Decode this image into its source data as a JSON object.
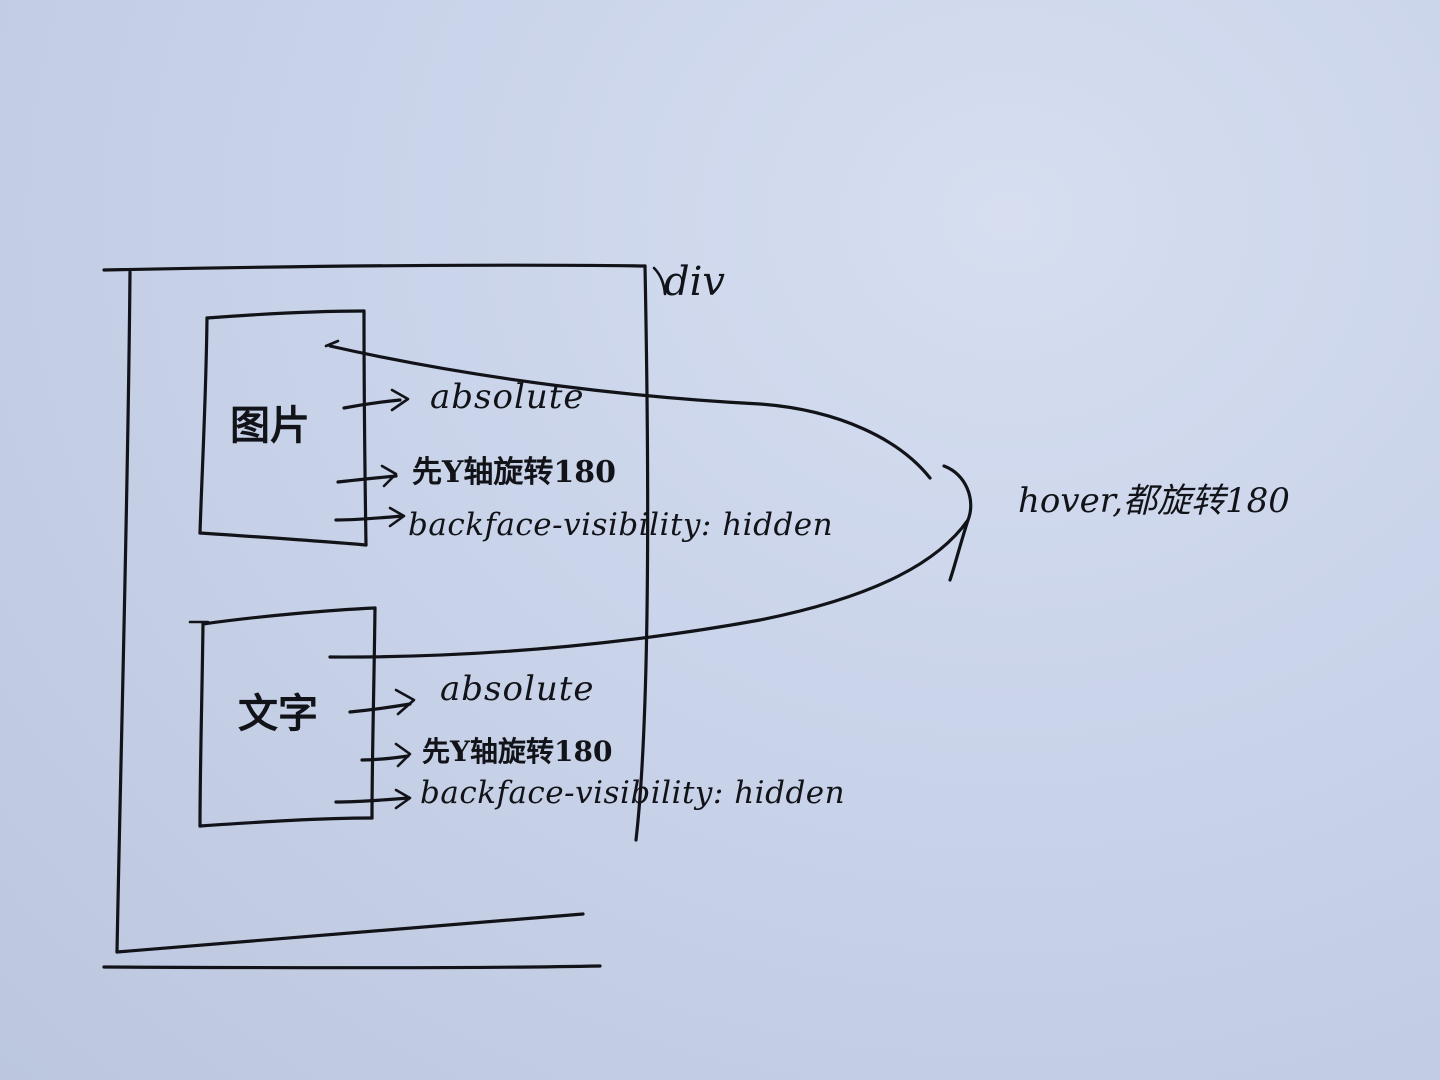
{
  "container_label": "div",
  "image_box": {
    "label": "图片",
    "notes": [
      "absolute",
      "先Y轴旋转180",
      "backface-visibility: hidden"
    ]
  },
  "text_box": {
    "label": "文字",
    "notes": [
      "absolute",
      "先Y轴旋转180",
      "backface-visibility: hidden"
    ]
  },
  "hover_note": "hover,都旋转180"
}
